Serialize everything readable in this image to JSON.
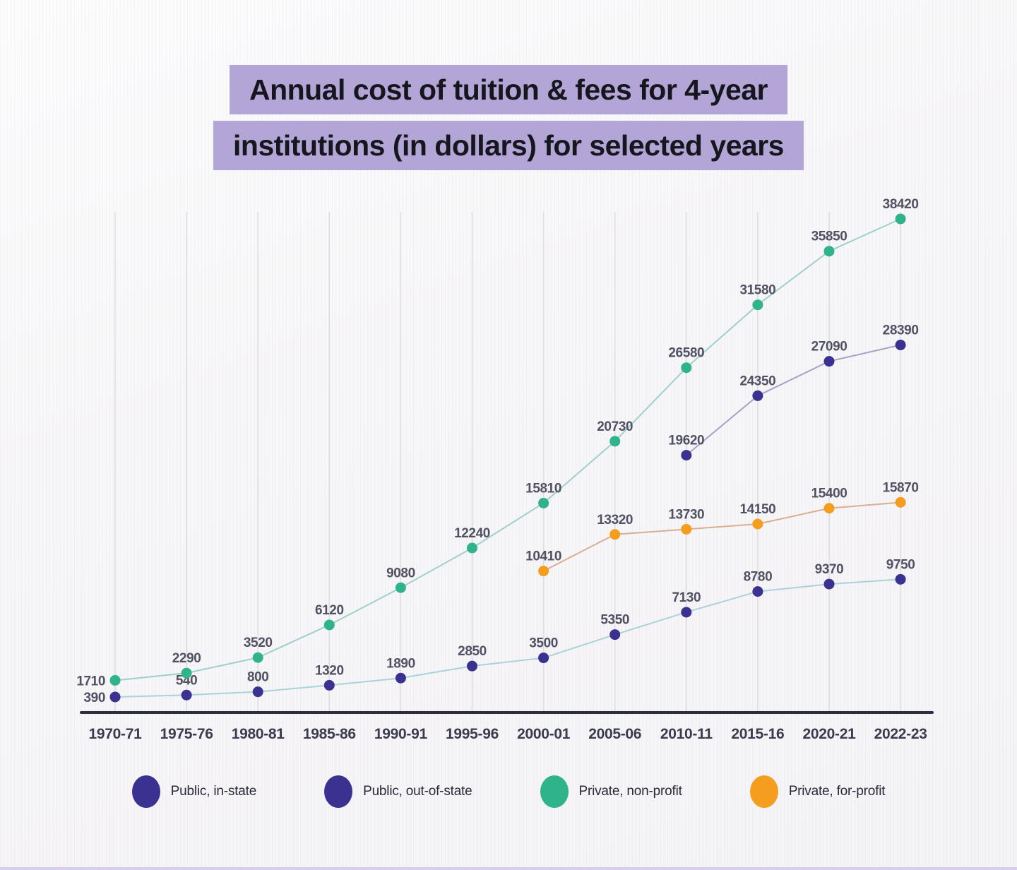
{
  "title": {
    "line1": "Annual cost of tuition & fees for 4-year",
    "line2": "institutions (in dollars) for selected years",
    "highlight_color": "#b4a5d7"
  },
  "chart_data": {
    "type": "line",
    "title": "Annual cost of tuition & fees for 4-year institutions (in dollars) for selected years",
    "xlabel": "",
    "ylabel": "",
    "ylim": [
      0,
      40000
    ],
    "grid": "vertical-only",
    "legend_position": "bottom",
    "value_labels": true,
    "categories": [
      "1970-71",
      "1975-76",
      "1980-81",
      "1985-86",
      "1990-91",
      "1995-96",
      "2000-01",
      "2005-06",
      "2010-11",
      "2015-16",
      "2020-21",
      "2022-23"
    ],
    "series": [
      {
        "name": "Public, in-state",
        "dot_color": "#3a3191",
        "line_color": "#a9d3d9",
        "values": [
          390,
          540,
          800,
          1320,
          1890,
          2850,
          3500,
          5350,
          7130,
          8780,
          9370,
          9750
        ]
      },
      {
        "name": "Public, out-of-state",
        "dot_color": "#3a3191",
        "line_color": "#a9a2c6",
        "values": [
          null,
          null,
          null,
          null,
          null,
          null,
          null,
          null,
          19620,
          24350,
          27090,
          28390
        ]
      },
      {
        "name": "Private, non-profit",
        "dot_color": "#2fb38b",
        "line_color": "#9fd0cc",
        "values": [
          1710,
          2290,
          3520,
          6120,
          9080,
          12240,
          15810,
          20730,
          26580,
          31580,
          35850,
          38420
        ]
      },
      {
        "name": "Private, for-profit",
        "dot_color": "#f49d1e",
        "line_color": "#d9ae92",
        "values": [
          null,
          null,
          null,
          null,
          null,
          null,
          10410,
          13320,
          13730,
          14150,
          15400,
          15870
        ]
      }
    ],
    "axis_line_color": "#2c2c42",
    "label_color": "#515164",
    "tick_color": "#3b3b50"
  }
}
